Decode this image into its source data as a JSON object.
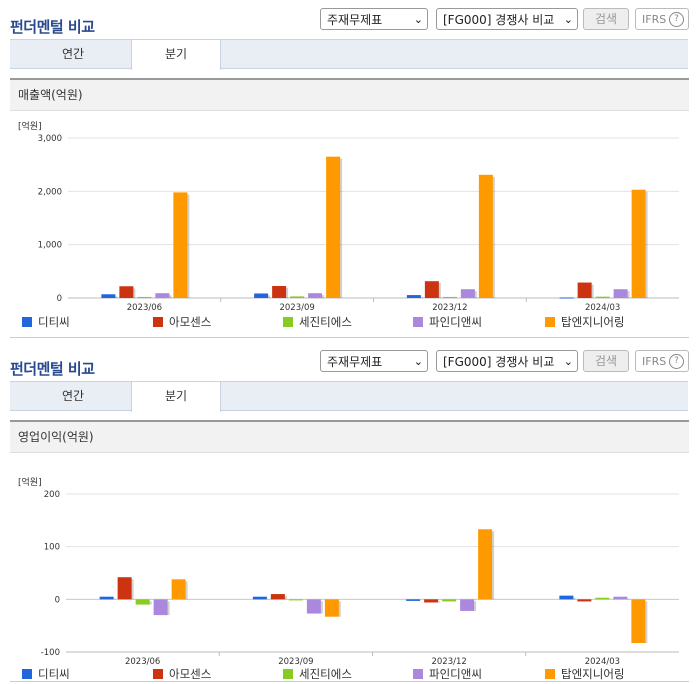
{
  "panels": [
    {
      "title": "펀더멘털 비교",
      "select1": "주재무제표",
      "select2": "[FG000] 경쟁사 비교",
      "search_label": "검색",
      "ifrs_label": "IFRS",
      "ifrs_help": "?",
      "tabs": [
        "연간",
        "분기"
      ],
      "chart_title": "매출액(억원)"
    },
    {
      "title": "펀더멘털 비교",
      "select1": "주재무제표",
      "select2": "[FG000] 경쟁사 비교",
      "search_label": "검색",
      "ifrs_label": "IFRS",
      "ifrs_help": "?",
      "tabs": [
        "연간",
        "분기"
      ],
      "chart_title": "영업이익(억원)"
    }
  ],
  "chart_data": [
    {
      "type": "bar",
      "title": "매출액(억원)",
      "unit_label": "[억원]",
      "categories": [
        "2023/06",
        "2023/09",
        "2023/12",
        "2024/03"
      ],
      "ylim": [
        0,
        3000
      ],
      "yticks": [
        0,
        1000,
        2000,
        3000
      ],
      "ytick_labels": [
        "0",
        "1,000",
        "2,000",
        "3,000"
      ],
      "grid": true,
      "legend_position": "bottom",
      "series": [
        {
          "name": "디티씨",
          "color": "#2266dd",
          "values": [
            70,
            85,
            55,
            10
          ]
        },
        {
          "name": "아모센스",
          "color": "#cc3311",
          "values": [
            220,
            225,
            315,
            290
          ]
        },
        {
          "name": "세진티에스",
          "color": "#88cc22",
          "values": [
            20,
            30,
            20,
            25
          ]
        },
        {
          "name": "파인디앤씨",
          "color": "#aa88dd",
          "values": [
            90,
            90,
            165,
            165
          ]
        },
        {
          "name": "탑엔지니어링",
          "color": "#ff9900",
          "values": [
            1980,
            2650,
            2310,
            2030
          ]
        }
      ]
    },
    {
      "type": "bar",
      "title": "영업이익(억원)",
      "unit_label": "[억원]",
      "categories": [
        "2023/06",
        "2023/09",
        "2023/12",
        "2024/03"
      ],
      "ylim": [
        -100,
        200
      ],
      "yticks": [
        -100,
        0,
        100,
        200
      ],
      "ytick_labels": [
        "-100",
        "0",
        "100",
        "200"
      ],
      "grid": true,
      "legend_position": "bottom",
      "series": [
        {
          "name": "디티씨",
          "color": "#2266dd",
          "values": [
            5,
            5,
            -3,
            7
          ]
        },
        {
          "name": "아모센스",
          "color": "#cc3311",
          "values": [
            42,
            10,
            -6,
            -4
          ]
        },
        {
          "name": "세진티에스",
          "color": "#88cc22",
          "values": [
            -10,
            -2,
            -4,
            3
          ]
        },
        {
          "name": "파인디앤씨",
          "color": "#aa88dd",
          "values": [
            -30,
            -27,
            -22,
            5
          ]
        },
        {
          "name": "탑엔지니어링",
          "color": "#ff9900",
          "values": [
            38,
            -33,
            133,
            -83
          ]
        }
      ]
    }
  ]
}
